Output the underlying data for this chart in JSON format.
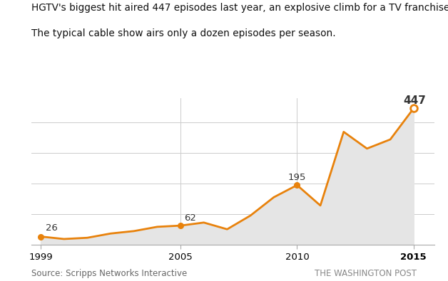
{
  "years": [
    1999,
    2000,
    2001,
    2002,
    2003,
    2004,
    2005,
    2006,
    2007,
    2008,
    2009,
    2010,
    2011,
    2012,
    2013,
    2014,
    2015
  ],
  "values": [
    26,
    18,
    22,
    36,
    44,
    58,
    62,
    72,
    50,
    95,
    155,
    195,
    128,
    370,
    315,
    345,
    447
  ],
  "line_color": "#E8820C",
  "fill_color": "#E5E5E5",
  "bg_color": "#FFFFFF",
  "title_line1": "HGTV's biggest hit aired 447 episodes last year, an explosive climb for a TV franchise.",
  "title_line2": "The typical cable show airs only a dozen episodes per season.",
  "source_text": "Source: Scripps Networks Interactive",
  "credit_text": "THE WASHINGTON POST",
  "annotated_years": [
    1999,
    2005,
    2010,
    2015
  ],
  "annotated_values": [
    26,
    62,
    195,
    447
  ],
  "xlabel_years": [
    1999,
    2005,
    2010,
    2015
  ],
  "xlabel_labels": [
    "1999",
    "2005",
    "2010",
    "2015"
  ],
  "title_fontsize": 9.8,
  "source_fontsize": 8.5,
  "annotation_fontsize": 9.5,
  "label_fontcolor": "#333333",
  "gridline_color": "#CCCCCC",
  "refline_color": "#CCCCCC",
  "ylim_max": 480,
  "xlim_min": 1998.6,
  "xlim_max": 2015.9
}
